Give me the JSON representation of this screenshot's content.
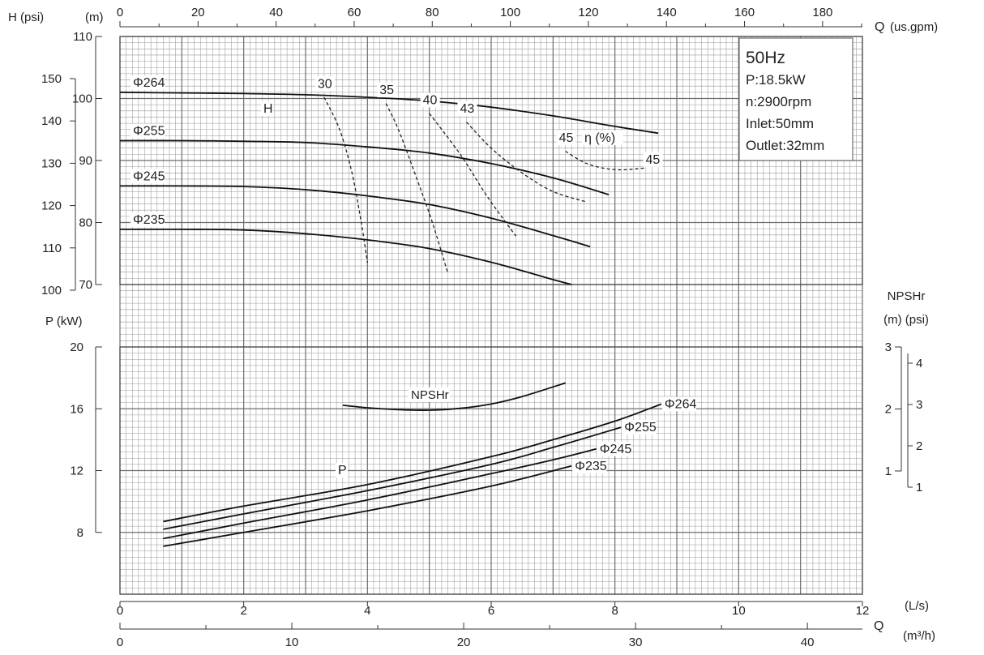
{
  "chart_data": {
    "type": "line",
    "units": {
      "h_psi": "H (psi)",
      "h_m": "(m)",
      "q_symbol": "Q",
      "q_usgpm": "(us.gpm)",
      "p_kw": "P (kW)",
      "npsh_title": "NPSHr",
      "npsh_units": "(m)  (psi)",
      "q_ls": "(L/s)",
      "q_m3h": "(m³/h)"
    },
    "axes": {
      "q_ls": {
        "range": [
          0,
          12
        ],
        "ticks": [
          "0",
          "2",
          "4",
          "6",
          "8",
          "10",
          "12"
        ]
      },
      "q_usgpm": {
        "range": [
          0,
          190.2
        ],
        "ticks": [
          "0",
          "20",
          "40",
          "60",
          "80",
          "100",
          "120",
          "140",
          "160",
          "180"
        ]
      },
      "q_m3h": {
        "range": [
          0,
          43.2
        ],
        "ticks": [
          "0",
          "10",
          "20",
          "30",
          "40"
        ]
      },
      "head_m": {
        "range": [
          65,
          110
        ],
        "ticks": [
          "110",
          "100",
          "90",
          "80",
          "70"
        ]
      },
      "head_psi": {
        "range": [
          100,
          160
        ],
        "ticks": [
          "150",
          "140",
          "130",
          "120",
          "110",
          "100"
        ]
      },
      "power_kw": {
        "range": [
          4,
          20
        ],
        "ticks": [
          "20",
          "16",
          "12",
          "8"
        ]
      },
      "npsh_m": {
        "range": [
          0,
          3
        ],
        "ticks": [
          "3",
          "2",
          "1"
        ]
      },
      "npsh_psi": {
        "range": [
          1,
          4
        ],
        "ticks": [
          "4",
          "3",
          "2",
          "1"
        ]
      }
    },
    "info_box": {
      "freq": "50Hz",
      "power": "P:18.5kW",
      "speed": "n:2900rpm",
      "inlet": "Inlet:50mm",
      "outlet": "Outlet:32mm"
    },
    "head_curves": [
      {
        "name": "Φ264",
        "points": [
          [
            0,
            101
          ],
          [
            1,
            100.9
          ],
          [
            2,
            100.8
          ],
          [
            3,
            100.6
          ],
          [
            4,
            100.2
          ],
          [
            5,
            99.6
          ],
          [
            6,
            98.6
          ],
          [
            7,
            97.2
          ],
          [
            8,
            95.5
          ],
          [
            8.7,
            94.4
          ]
        ]
      },
      {
        "name": "Φ255",
        "points": [
          [
            0,
            93.2
          ],
          [
            1,
            93.2
          ],
          [
            2,
            93.1
          ],
          [
            3,
            92.9
          ],
          [
            4,
            92.2
          ],
          [
            5,
            91.2
          ],
          [
            6,
            89.5
          ],
          [
            7,
            87.2
          ],
          [
            7.9,
            84.5
          ]
        ]
      },
      {
        "name": "Φ245",
        "points": [
          [
            0,
            85.9
          ],
          [
            1,
            85.9
          ],
          [
            2,
            85.8
          ],
          [
            3,
            85.3
          ],
          [
            4,
            84.3
          ],
          [
            5,
            82.9
          ],
          [
            6,
            80.7
          ],
          [
            7,
            77.9
          ],
          [
            7.6,
            76.1
          ]
        ]
      },
      {
        "name": "Φ235",
        "points": [
          [
            0,
            78.9
          ],
          [
            1,
            78.9
          ],
          [
            2,
            78.8
          ],
          [
            3,
            78.2
          ],
          [
            4,
            77.2
          ],
          [
            5,
            75.8
          ],
          [
            6,
            73.6
          ],
          [
            7,
            70.8
          ],
          [
            7.3,
            70
          ]
        ]
      }
    ],
    "head_curve_label": "H",
    "efficiency_label": "η (%)",
    "efficiency_lines": [
      {
        "name": "30",
        "points": [
          [
            3.3,
            100.2
          ],
          [
            3.55,
            95
          ],
          [
            3.75,
            88
          ],
          [
            3.9,
            80
          ],
          [
            4.0,
            73.5
          ]
        ]
      },
      {
        "name": "35",
        "points": [
          [
            4.3,
            99.2
          ],
          [
            4.5,
            95
          ],
          [
            4.8,
            87
          ],
          [
            5.05,
            80
          ],
          [
            5.3,
            71.8
          ]
        ]
      },
      {
        "name": "40",
        "points": [
          [
            5.0,
            97.6
          ],
          [
            5.5,
            91
          ],
          [
            5.95,
            84
          ],
          [
            6.4,
            77.8
          ]
        ]
      },
      {
        "name": "43",
        "points": [
          [
            5.6,
            96.2
          ],
          [
            6.0,
            92
          ],
          [
            6.5,
            88
          ],
          [
            7.0,
            85
          ],
          [
            7.55,
            83.3
          ]
        ]
      },
      {
        "name": "45",
        "points": [
          [
            7.2,
            91.5
          ],
          [
            7.5,
            89.7
          ],
          [
            7.8,
            88.8
          ],
          [
            8.1,
            88.5
          ],
          [
            8.5,
            88.8
          ]
        ]
      }
    ],
    "efficiency_label_positions": [
      {
        "text": "30",
        "x": 3.3,
        "y": 101.7
      },
      {
        "text": "35",
        "x": 4.3,
        "y": 100.7
      },
      {
        "text": "40",
        "x": 5.0,
        "y": 99.1
      },
      {
        "text": "43",
        "x": 5.6,
        "y": 97.7
      },
      {
        "text": "45",
        "x": 7.2,
        "y": 93.0
      },
      {
        "text": "45",
        "x": 8.6,
        "y": 89.5
      }
    ],
    "power_curves": [
      {
        "name": "Φ264",
        "points": [
          [
            0.7,
            8.7
          ],
          [
            2,
            9.7
          ],
          [
            4,
            11.1
          ],
          [
            6,
            12.9
          ],
          [
            7,
            14.0
          ],
          [
            8,
            15.2
          ],
          [
            8.75,
            16.3
          ]
        ]
      },
      {
        "name": "Φ255",
        "points": [
          [
            0.7,
            8.2
          ],
          [
            2,
            9.2
          ],
          [
            4,
            10.7
          ],
          [
            6,
            12.4
          ],
          [
            7,
            13.5
          ],
          [
            8.1,
            14.8
          ]
        ]
      },
      {
        "name": "Φ245",
        "points": [
          [
            0.7,
            7.6
          ],
          [
            2,
            8.6
          ],
          [
            4,
            10.1
          ],
          [
            6,
            11.8
          ],
          [
            7,
            12.7
          ],
          [
            7.7,
            13.4
          ]
        ]
      },
      {
        "name": "Φ235",
        "points": [
          [
            0.7,
            7.1
          ],
          [
            2,
            8.0
          ],
          [
            4,
            9.4
          ],
          [
            6,
            11.0
          ],
          [
            7.3,
            12.3
          ]
        ]
      }
    ],
    "power_curve_label": "P",
    "npsh_curve": {
      "name": "NPSHr",
      "points": [
        [
          3.6,
          2.06
        ],
        [
          4.0,
          2.02
        ],
        [
          4.5,
          1.99
        ],
        [
          5.0,
          1.98
        ],
        [
          5.5,
          2.01
        ],
        [
          6.0,
          2.08
        ],
        [
          6.5,
          2.2
        ],
        [
          7.2,
          2.42
        ]
      ]
    }
  }
}
